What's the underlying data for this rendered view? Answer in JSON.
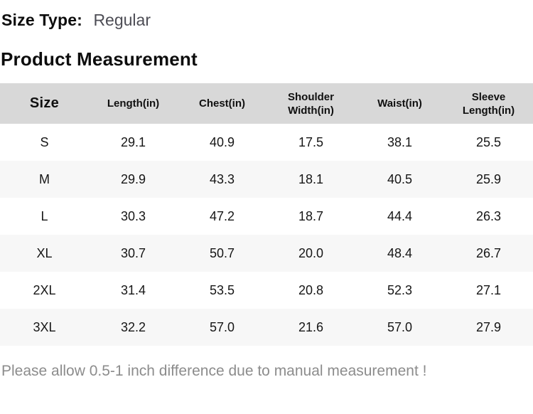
{
  "size_type": {
    "label": "Size Type:",
    "value": "Regular"
  },
  "heading": "Product Measurement",
  "table": {
    "columns": [
      "Size",
      "Length(in)",
      "Chest(in)",
      "Shoulder\nWidth(in)",
      "Waist(in)",
      "Sleeve\nLength(in)"
    ],
    "rows": [
      {
        "size": "S",
        "values": [
          "29.1",
          "40.9",
          "17.5",
          "38.1",
          "25.5"
        ]
      },
      {
        "size": "M",
        "values": [
          "29.9",
          "43.3",
          "18.1",
          "40.5",
          "25.9"
        ]
      },
      {
        "size": "L",
        "values": [
          "30.3",
          "47.2",
          "18.7",
          "44.4",
          "26.3"
        ]
      },
      {
        "size": "XL",
        "values": [
          "30.7",
          "50.7",
          "20.0",
          "48.4",
          "26.7"
        ]
      },
      {
        "size": "2XL",
        "values": [
          "31.4",
          "53.5",
          "20.8",
          "52.3",
          "27.1"
        ]
      },
      {
        "size": "3XL",
        "values": [
          "32.2",
          "57.0",
          "21.6",
          "57.0",
          "27.9"
        ]
      }
    ]
  },
  "note": "Please allow 0.5-1 inch difference due to manual measurement !",
  "colors": {
    "header_bg": "#d8d8d8",
    "alt_row_bg": "#f7f7f7",
    "note_text": "#8c8c8c",
    "size_type_value_text": "#4d4d55"
  }
}
